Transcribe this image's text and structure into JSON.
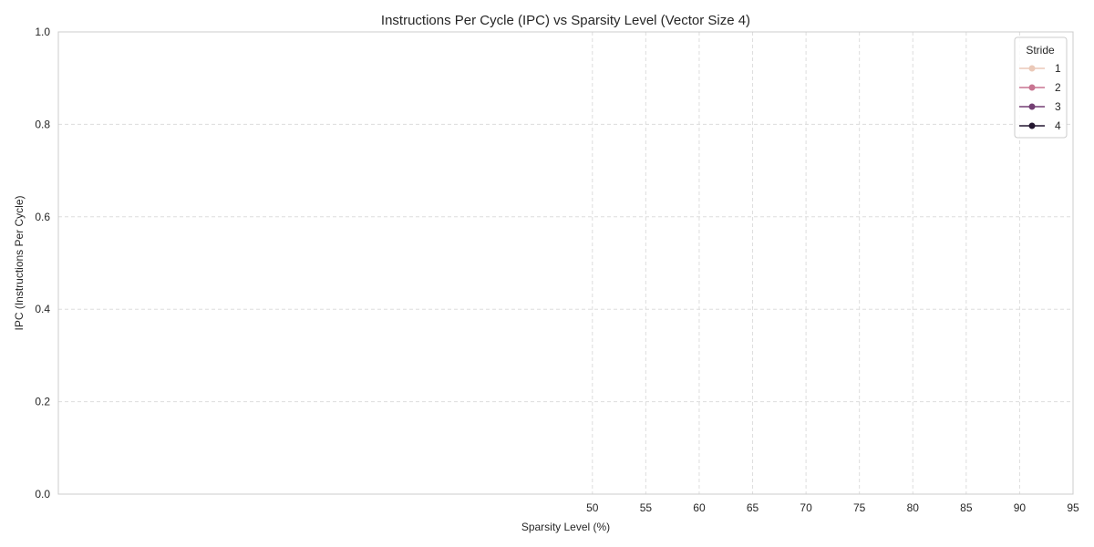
{
  "chart_data": {
    "type": "line",
    "title": "Instructions Per Cycle (IPC) vs Sparsity Level (Vector Size 4)",
    "xlabel": "Sparsity Level (%)",
    "ylabel": "IPC (Instructions Per Cycle)",
    "xlim": [
      0,
      95
    ],
    "ylim": [
      0.0,
      1.0
    ],
    "x_ticks": [
      50,
      55,
      60,
      65,
      70,
      75,
      80,
      85,
      90,
      95
    ],
    "y_ticks": [
      "0.0",
      "0.2",
      "0.4",
      "0.6",
      "0.8",
      "1.0"
    ],
    "grid": true,
    "legend": {
      "title": "Stride",
      "placement": "top-right",
      "entries": [
        {
          "label": "1",
          "color": "#ebc9b8"
        },
        {
          "label": "2",
          "color": "#c87491"
        },
        {
          "label": "3",
          "color": "#743f73"
        },
        {
          "label": "4",
          "color": "#241630"
        }
      ]
    },
    "series": [
      {
        "name": "1",
        "x": [],
        "y": []
      },
      {
        "name": "2",
        "x": [],
        "y": []
      },
      {
        "name": "3",
        "x": [],
        "y": []
      },
      {
        "name": "4",
        "x": [],
        "y": []
      }
    ]
  }
}
